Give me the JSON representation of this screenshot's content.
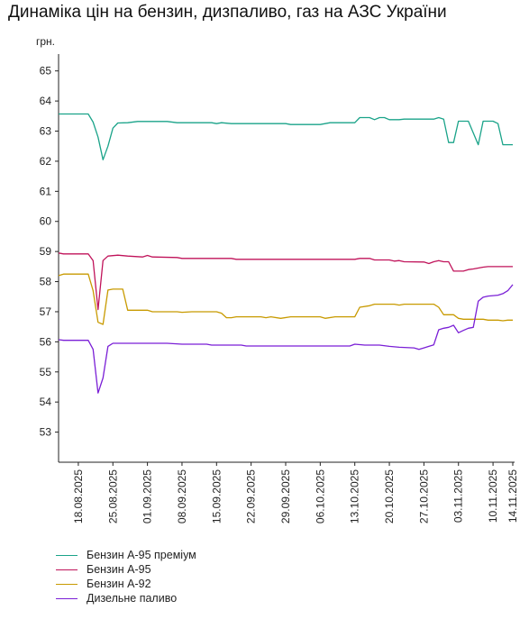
{
  "chart_data": {
    "type": "line",
    "title": "Динаміка цін на бензин, дизпаливо, газ на АЗС України",
    "ylabel": "грн.",
    "xlabel": "",
    "ylim": [
      52,
      65.5
    ],
    "yticks": [
      53,
      54,
      55,
      56,
      57,
      58,
      59,
      60,
      61,
      62,
      63,
      64,
      65
    ],
    "grid": false,
    "legend_position": "bottom",
    "x_start": "2025-08-14",
    "x_end": "2025-11-14",
    "xticks": [
      "18.08.2025",
      "25.08.2025",
      "01.09.2025",
      "08.09.2025",
      "15.09.2025",
      "22.09.2025",
      "29.09.2025",
      "06.10.2025",
      "13.10.2025",
      "20.10.2025",
      "27.10.2025",
      "03.11.2025",
      "10.11.2025",
      "14.11.2025"
    ],
    "series": [
      {
        "name": "Бензин А-95 преміум",
        "color": "#1aa389",
        "points": [
          [
            "2025-08-14",
            63.57
          ],
          [
            "2025-08-20",
            63.57
          ],
          [
            "2025-08-21",
            63.3
          ],
          [
            "2025-08-22",
            62.8
          ],
          [
            "2025-08-23",
            62.05
          ],
          [
            "2025-08-24",
            62.5
          ],
          [
            "2025-08-25",
            63.1
          ],
          [
            "2025-08-26",
            63.27
          ],
          [
            "2025-08-28",
            63.28
          ],
          [
            "2025-08-30",
            63.32
          ],
          [
            "2025-09-01",
            63.32
          ],
          [
            "2025-09-05",
            63.32
          ],
          [
            "2025-09-07",
            63.28
          ],
          [
            "2025-09-14",
            63.28
          ],
          [
            "2025-09-15",
            63.25
          ],
          [
            "2025-09-16",
            63.28
          ],
          [
            "2025-09-18",
            63.25
          ],
          [
            "2025-09-29",
            63.25
          ],
          [
            "2025-09-30",
            63.22
          ],
          [
            "2025-10-06",
            63.22
          ],
          [
            "2025-10-08",
            63.28
          ],
          [
            "2025-10-13",
            63.28
          ],
          [
            "2025-10-14",
            63.45
          ],
          [
            "2025-10-16",
            63.45
          ],
          [
            "2025-10-17",
            63.38
          ],
          [
            "2025-10-18",
            63.45
          ],
          [
            "2025-10-19",
            63.45
          ],
          [
            "2025-10-20",
            63.38
          ],
          [
            "2025-10-22",
            63.38
          ],
          [
            "2025-10-23",
            63.4
          ],
          [
            "2025-10-29",
            63.4
          ],
          [
            "2025-10-30",
            63.45
          ],
          [
            "2025-10-31",
            63.4
          ],
          [
            "2025-11-01",
            62.62
          ],
          [
            "2025-11-02",
            62.62
          ],
          [
            "2025-11-03",
            63.33
          ],
          [
            "2025-11-05",
            63.33
          ],
          [
            "2025-11-07",
            62.55
          ],
          [
            "2025-11-08",
            63.33
          ],
          [
            "2025-11-10",
            63.33
          ],
          [
            "2025-11-11",
            63.25
          ],
          [
            "2025-11-12",
            62.55
          ],
          [
            "2025-11-14",
            62.55
          ]
        ]
      },
      {
        "name": "Бензин А-95",
        "color": "#c0135a",
        "points": [
          [
            "2025-08-14",
            58.95
          ],
          [
            "2025-08-15",
            58.92
          ],
          [
            "2025-08-20",
            58.92
          ],
          [
            "2025-08-21",
            58.7
          ],
          [
            "2025-08-22",
            57.07
          ],
          [
            "2025-08-23",
            58.7
          ],
          [
            "2025-08-24",
            58.85
          ],
          [
            "2025-08-26",
            58.88
          ],
          [
            "2025-08-28",
            58.85
          ],
          [
            "2025-08-31",
            58.82
          ],
          [
            "2025-09-01",
            58.87
          ],
          [
            "2025-09-02",
            58.82
          ],
          [
            "2025-09-07",
            58.8
          ],
          [
            "2025-09-08",
            58.77
          ],
          [
            "2025-09-18",
            58.77
          ],
          [
            "2025-09-19",
            58.74
          ],
          [
            "2025-09-30",
            58.74
          ],
          [
            "2025-10-13",
            58.74
          ],
          [
            "2025-10-14",
            58.77
          ],
          [
            "2025-10-16",
            58.77
          ],
          [
            "2025-10-17",
            58.72
          ],
          [
            "2025-10-20",
            58.72
          ],
          [
            "2025-10-21",
            58.68
          ],
          [
            "2025-10-22",
            58.7
          ],
          [
            "2025-10-23",
            58.66
          ],
          [
            "2025-10-27",
            58.65
          ],
          [
            "2025-10-28",
            58.6
          ],
          [
            "2025-10-29",
            58.66
          ],
          [
            "2025-10-30",
            58.7
          ],
          [
            "2025-10-31",
            58.66
          ],
          [
            "2025-11-01",
            58.66
          ],
          [
            "2025-11-02",
            58.35
          ],
          [
            "2025-11-04",
            58.35
          ],
          [
            "2025-11-05",
            58.4
          ],
          [
            "2025-11-06",
            58.42
          ],
          [
            "2025-11-08",
            58.48
          ],
          [
            "2025-11-09",
            58.5
          ],
          [
            "2025-11-14",
            58.5
          ]
        ]
      },
      {
        "name": "Бензин А-92",
        "color": "#c89a00",
        "points": [
          [
            "2025-08-14",
            58.2
          ],
          [
            "2025-08-15",
            58.25
          ],
          [
            "2025-08-20",
            58.25
          ],
          [
            "2025-08-21",
            57.7
          ],
          [
            "2025-08-22",
            56.65
          ],
          [
            "2025-08-23",
            56.58
          ],
          [
            "2025-08-24",
            57.72
          ],
          [
            "2025-08-25",
            57.75
          ],
          [
            "2025-08-27",
            57.75
          ],
          [
            "2025-08-28",
            57.05
          ],
          [
            "2025-09-01",
            57.05
          ],
          [
            "2025-09-02",
            57.0
          ],
          [
            "2025-09-07",
            57.0
          ],
          [
            "2025-09-08",
            56.98
          ],
          [
            "2025-09-10",
            57.0
          ],
          [
            "2025-09-15",
            57.0
          ],
          [
            "2025-09-16",
            56.95
          ],
          [
            "2025-09-17",
            56.8
          ],
          [
            "2025-09-18",
            56.8
          ],
          [
            "2025-09-19",
            56.83
          ],
          [
            "2025-09-24",
            56.83
          ],
          [
            "2025-09-25",
            56.8
          ],
          [
            "2025-09-26",
            56.83
          ],
          [
            "2025-09-28",
            56.78
          ],
          [
            "2025-09-30",
            56.83
          ],
          [
            "2025-10-06",
            56.83
          ],
          [
            "2025-10-07",
            56.78
          ],
          [
            "2025-10-09",
            56.83
          ],
          [
            "2025-10-13",
            56.83
          ],
          [
            "2025-10-14",
            57.15
          ],
          [
            "2025-10-16",
            57.2
          ],
          [
            "2025-10-17",
            57.25
          ],
          [
            "2025-10-21",
            57.25
          ],
          [
            "2025-10-22",
            57.22
          ],
          [
            "2025-10-23",
            57.25
          ],
          [
            "2025-10-29",
            57.25
          ],
          [
            "2025-10-30",
            57.15
          ],
          [
            "2025-10-31",
            56.9
          ],
          [
            "2025-11-01",
            56.9
          ],
          [
            "2025-11-02",
            56.9
          ],
          [
            "2025-11-03",
            56.78
          ],
          [
            "2025-11-04",
            56.75
          ],
          [
            "2025-11-08",
            56.75
          ],
          [
            "2025-11-09",
            56.72
          ],
          [
            "2025-11-11",
            56.72
          ],
          [
            "2025-11-12",
            56.7
          ],
          [
            "2025-11-13",
            56.72
          ],
          [
            "2025-11-14",
            56.72
          ]
        ]
      },
      {
        "name": "Дизельне паливо",
        "color": "#7a1fd6",
        "points": [
          [
            "2025-08-14",
            56.07
          ],
          [
            "2025-08-15",
            56.05
          ],
          [
            "2025-08-20",
            56.05
          ],
          [
            "2025-08-21",
            55.75
          ],
          [
            "2025-08-22",
            54.3
          ],
          [
            "2025-08-23",
            54.8
          ],
          [
            "2025-08-24",
            55.85
          ],
          [
            "2025-08-25",
            55.95
          ],
          [
            "2025-08-26",
            55.95
          ],
          [
            "2025-09-01",
            55.95
          ],
          [
            "2025-09-05",
            55.95
          ],
          [
            "2025-09-08",
            55.92
          ],
          [
            "2025-09-13",
            55.92
          ],
          [
            "2025-09-14",
            55.89
          ],
          [
            "2025-09-20",
            55.89
          ],
          [
            "2025-09-21",
            55.86
          ],
          [
            "2025-10-01",
            55.86
          ],
          [
            "2025-10-12",
            55.86
          ],
          [
            "2025-10-13",
            55.92
          ],
          [
            "2025-10-15",
            55.89
          ],
          [
            "2025-10-18",
            55.89
          ],
          [
            "2025-10-20",
            55.85
          ],
          [
            "2025-10-22",
            55.82
          ],
          [
            "2025-10-25",
            55.8
          ],
          [
            "2025-10-26",
            55.75
          ],
          [
            "2025-10-27",
            55.8
          ],
          [
            "2025-10-28",
            55.85
          ],
          [
            "2025-10-29",
            55.9
          ],
          [
            "2025-10-30",
            56.4
          ],
          [
            "2025-10-31",
            56.45
          ],
          [
            "2025-11-01",
            56.48
          ],
          [
            "2025-11-02",
            56.55
          ],
          [
            "2025-11-03",
            56.3
          ],
          [
            "2025-11-04",
            56.38
          ],
          [
            "2025-11-05",
            56.45
          ],
          [
            "2025-11-06",
            56.48
          ],
          [
            "2025-11-07",
            57.35
          ],
          [
            "2025-11-08",
            57.48
          ],
          [
            "2025-11-09",
            57.52
          ],
          [
            "2025-11-11",
            57.55
          ],
          [
            "2025-11-12",
            57.6
          ],
          [
            "2025-11-13",
            57.7
          ],
          [
            "2025-11-14",
            57.9
          ]
        ]
      }
    ]
  }
}
